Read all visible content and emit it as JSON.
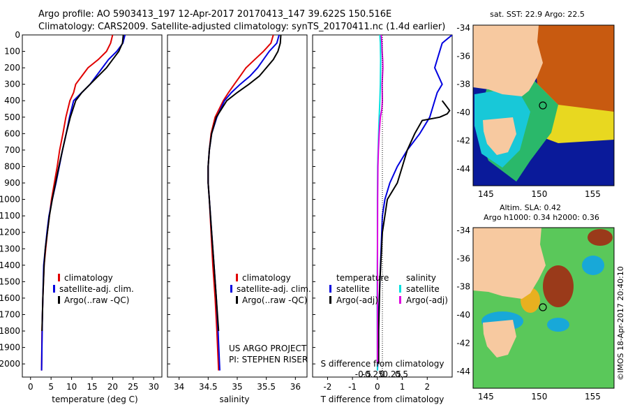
{
  "header": {
    "line1": "Argo profile: AO 5903413_197 12-Apr-2017 20170413_147 39.622S 150.516E",
    "line2": "Climatology: CARS2009. Satellite-adjusted climatology: synTS_20170411.nc (1.4d earlier)"
  },
  "colors": {
    "climatology": "#e00000",
    "satellite": "#0000e0",
    "argo": "#000000",
    "sat_salinity": "#00e0e0",
    "argo_salinity": "#e000e0"
  },
  "chart_data": [
    {
      "type": "line",
      "xlabel": "temperature (deg C)",
      "xlim": [
        -2,
        32
      ],
      "ylim": [
        2080,
        0
      ],
      "xticks": [
        0,
        5,
        10,
        15,
        20,
        25,
        30
      ],
      "yticks": [
        0,
        100,
        200,
        300,
        400,
        500,
        600,
        700,
        800,
        900,
        1000,
        1100,
        1200,
        1300,
        1400,
        1500,
        1600,
        1700,
        1800,
        1900,
        2000
      ],
      "legend": [
        "climatology",
        "satellite-adj. clim.",
        "Argo(..raw -QC)"
      ],
      "series": [
        {
          "name": "climatology",
          "color": "#e00000",
          "x": [
            20,
            19.5,
            18.5,
            16.5,
            14,
            12.5,
            11,
            10.5,
            9.6,
            8.6,
            7.9,
            7.1,
            6.5,
            5.8,
            5.1,
            4.6,
            4.1,
            3.7,
            3.3,
            3.0,
            2.8,
            2.7
          ],
          "depth": [
            0,
            50,
            100,
            150,
            200,
            250,
            300,
            350,
            400,
            500,
            600,
            700,
            800,
            900,
            1000,
            1100,
            1200,
            1300,
            1400,
            1600,
            1800,
            2040
          ]
        },
        {
          "name": "satellite-adj. clim.",
          "color": "#0000e0",
          "x": [
            23,
            22.5,
            21,
            19,
            17.5,
            16,
            14.5,
            12.5,
            10.5,
            9.5,
            8.7,
            7.8,
            7,
            6.2,
            5.3,
            4.5,
            4,
            3.6,
            3.2,
            2.9,
            2.7
          ],
          "depth": [
            0,
            50,
            100,
            150,
            200,
            250,
            300,
            350,
            400,
            500,
            600,
            700,
            800,
            900,
            1000,
            1100,
            1200,
            1300,
            1400,
            1700,
            2040
          ]
        },
        {
          "name": "Argo(..raw -QC)",
          "color": "#000000",
          "x": [
            22.6,
            22.4,
            21.5,
            20,
            18.5,
            16.5,
            14.5,
            12.5,
            11,
            9.7,
            8.7,
            7.8,
            6.9,
            6.1,
            5.3,
            4.6,
            4.1,
            3.6,
            3.3,
            3.0,
            2.8
          ],
          "depth": [
            0,
            50,
            100,
            150,
            200,
            250,
            300,
            350,
            400,
            500,
            600,
            700,
            800,
            900,
            1000,
            1100,
            1200,
            1300,
            1400,
            1600,
            1800
          ]
        }
      ]
    },
    {
      "type": "line",
      "xlabel": "salinity",
      "xlim": [
        33.8,
        36.2
      ],
      "ylim": [
        2080,
        0
      ],
      "xticks": [
        34,
        34.5,
        35,
        35.5,
        36
      ],
      "legend": [
        "climatology",
        "satellite-adj. clim.",
        "Argo(..raw -QC)"
      ],
      "annotation": [
        "US ARGO PROJECT",
        "PI: STEPHEN RISER"
      ],
      "series": [
        {
          "name": "climatology",
          "color": "#e00000",
          "x": [
            35.62,
            35.58,
            35.45,
            35.3,
            35.15,
            35.05,
            34.95,
            34.85,
            34.76,
            34.62,
            34.55,
            34.52,
            34.5,
            34.5,
            34.52,
            34.55,
            34.58,
            34.62,
            34.65,
            34.68
          ],
          "depth": [
            0,
            50,
            100,
            150,
            200,
            250,
            300,
            350,
            400,
            500,
            600,
            700,
            800,
            900,
            1000,
            1200,
            1400,
            1600,
            1800,
            2040
          ]
        },
        {
          "name": "satellite-adj. clim.",
          "color": "#0000e0",
          "x": [
            35.72,
            35.68,
            35.55,
            35.45,
            35.35,
            35.22,
            35.05,
            34.9,
            34.78,
            34.65,
            34.56,
            34.52,
            34.5,
            34.5,
            34.52,
            34.56,
            34.6,
            34.64,
            34.67,
            34.7
          ],
          "depth": [
            0,
            50,
            100,
            150,
            200,
            250,
            300,
            350,
            400,
            500,
            600,
            700,
            800,
            900,
            1000,
            1200,
            1400,
            1600,
            1800,
            2040
          ]
        },
        {
          "name": "Argo(..raw -QC)",
          "color": "#000000",
          "x": [
            35.75,
            35.74,
            35.7,
            35.62,
            35.5,
            35.38,
            35.2,
            35.0,
            34.82,
            34.64,
            34.56,
            34.52,
            34.5,
            34.5,
            34.52,
            34.56,
            34.6,
            34.64,
            34.68
          ],
          "depth": [
            0,
            50,
            100,
            150,
            200,
            250,
            300,
            350,
            400,
            500,
            600,
            700,
            800,
            900,
            1000,
            1200,
            1400,
            1600,
            1800
          ]
        }
      ]
    },
    {
      "type": "line",
      "xlabel": "T difference from climatology",
      "top_axis_label": "S difference from climatology",
      "xlim": [
        -2.6,
        3.0
      ],
      "ylim": [
        2080,
        0
      ],
      "xticks": [
        -2,
        -1,
        0,
        1,
        2
      ],
      "top_ticks": [
        -0.5,
        -0.25,
        0,
        0.25,
        0.5
      ],
      "legend_temperature": {
        "heading": "temperature",
        "items": [
          "satellite",
          "Argo(-adj)"
        ]
      },
      "legend_salinity": {
        "heading": "salinity",
        "items": [
          "satellite",
          "Argo(-adj)"
        ]
      },
      "series": [
        {
          "name": "temperature satellite",
          "color": "#0000e0",
          "x": [
            3.0,
            2.6,
            2.5,
            2.3,
            2.6,
            2.4,
            2.3,
            2.1,
            1.7,
            1.2,
            0.8,
            0.5,
            0.3,
            0.2,
            0.15,
            0.1,
            0.05,
            0.05,
            0.0
          ],
          "depth": [
            0,
            50,
            100,
            200,
            300,
            350,
            400,
            500,
            600,
            700,
            800,
            900,
            1000,
            1100,
            1300,
            1500,
            1700,
            1900,
            2040
          ]
        },
        {
          "name": "temperature Argo(-adj)",
          "color": "#000000",
          "x": [
            2.6,
            2.7,
            2.8,
            2.9,
            2.8,
            2.5,
            1.8,
            1.5,
            1.2,
            1.0,
            0.8,
            0.4,
            0.2,
            0.1,
            0.05,
            0.05
          ],
          "depth": [
            400,
            420,
            440,
            460,
            480,
            500,
            520,
            600,
            700,
            800,
            900,
            1000,
            1200,
            1500,
            1800,
            2000
          ]
        },
        {
          "name": "salinity satellite",
          "color": "#00e0e0",
          "x": [
            0.1,
            0.12,
            0.13,
            0.12,
            0.1,
            0.07,
            0.05,
            0.03,
            0.01,
            0.0,
            0.0,
            -0.01,
            0.0
          ],
          "depth": [
            0,
            50,
            150,
            300,
            400,
            500,
            600,
            700,
            800,
            1000,
            1300,
            1600,
            2040
          ]
        },
        {
          "name": "salinity Argo(-adj)",
          "color": "#e000e0",
          "x": [
            0.15,
            0.18,
            0.19,
            0.21,
            0.22,
            0.19,
            0.2,
            0.18,
            0.12,
            0.07,
            0.04,
            0.02,
            0.01,
            0.0,
            0.0
          ],
          "depth": [
            0,
            50,
            100,
            150,
            200,
            300,
            400,
            450,
            500,
            600,
            700,
            800,
            1000,
            1400,
            2000
          ]
        }
      ]
    },
    {
      "type": "heatmap",
      "title": "sat. SST: 22.9  Argo: 22.5",
      "xticks": [
        145,
        150,
        155
      ],
      "yticks": [
        -34,
        -36,
        -38,
        -40,
        -42,
        -44
      ],
      "xlim": [
        143.8,
        157
      ],
      "ylim": [
        -45.2,
        -33.8
      ],
      "marker": {
        "lon": 150.516,
        "lat": -39.622
      }
    },
    {
      "type": "heatmap",
      "title": "Altim. SLA: 0.42",
      "subtitle": "Argo h1000: 0.34  h2000: 0.36",
      "xticks": [
        145,
        150,
        155
      ],
      "yticks": [
        -34,
        -36,
        -38,
        -40,
        -42,
        -44
      ],
      "xlim": [
        143.8,
        157
      ],
      "ylim": [
        -45.2,
        -33.8
      ],
      "marker": {
        "lon": 150.516,
        "lat": -39.622
      }
    }
  ],
  "credit": "©IMOS 18-Apr-2017 20:40:10"
}
